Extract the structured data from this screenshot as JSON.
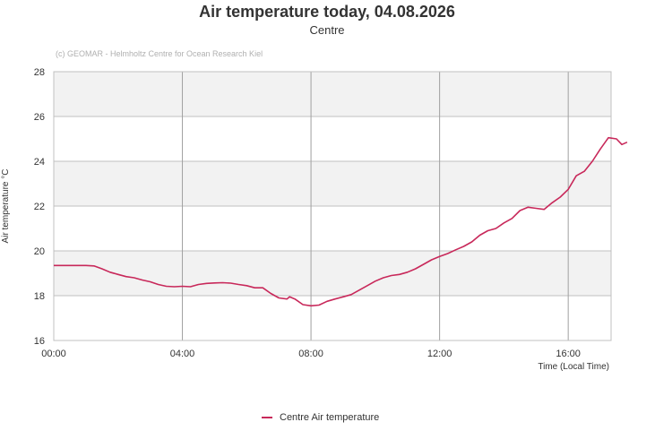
{
  "chart_data": {
    "type": "line",
    "title": "Air temperature today, 04.08.2026",
    "subtitle": "Centre",
    "credit": "(c) GEOMAR - Helmholtz Centre for Ocean Research Kiel",
    "xlabel": "Time (Local Time)",
    "ylabel": "Air temperature °C",
    "xlim": [
      "00:00",
      "17:20"
    ],
    "ylim": [
      16,
      28
    ],
    "x_ticks": [
      "00:00",
      "04:00",
      "08:00",
      "12:00",
      "16:00"
    ],
    "y_ticks": [
      16,
      18,
      20,
      22,
      24,
      26,
      28
    ],
    "grid": true,
    "legend_position": "bottom-center",
    "series": [
      {
        "name": "Centre Air temperature",
        "color": "#c8285a",
        "points": [
          [
            "00:00",
            19.35
          ],
          [
            "00:30",
            19.35
          ],
          [
            "01:00",
            19.35
          ],
          [
            "01:15",
            19.33
          ],
          [
            "01:30",
            19.2
          ],
          [
            "01:45",
            19.05
          ],
          [
            "02:00",
            18.95
          ],
          [
            "02:15",
            18.85
          ],
          [
            "02:30",
            18.8
          ],
          [
            "02:45",
            18.7
          ],
          [
            "03:00",
            18.62
          ],
          [
            "03:15",
            18.5
          ],
          [
            "03:30",
            18.42
          ],
          [
            "03:45",
            18.4
          ],
          [
            "04:00",
            18.42
          ],
          [
            "04:15",
            18.4
          ],
          [
            "04:30",
            18.5
          ],
          [
            "04:45",
            18.55
          ],
          [
            "05:00",
            18.57
          ],
          [
            "05:15",
            18.58
          ],
          [
            "05:30",
            18.56
          ],
          [
            "05:45",
            18.5
          ],
          [
            "06:00",
            18.45
          ],
          [
            "06:15",
            18.35
          ],
          [
            "06:30",
            18.35
          ],
          [
            "06:45",
            18.1
          ],
          [
            "07:00",
            17.9
          ],
          [
            "07:15",
            17.85
          ],
          [
            "07:20",
            17.95
          ],
          [
            "07:30",
            17.85
          ],
          [
            "07:45",
            17.6
          ],
          [
            "08:00",
            17.55
          ],
          [
            "08:15",
            17.58
          ],
          [
            "08:30",
            17.75
          ],
          [
            "08:45",
            17.85
          ],
          [
            "09:00",
            17.95
          ],
          [
            "09:15",
            18.05
          ],
          [
            "09:30",
            18.25
          ],
          [
            "09:45",
            18.45
          ],
          [
            "10:00",
            18.65
          ],
          [
            "10:15",
            18.8
          ],
          [
            "10:30",
            18.9
          ],
          [
            "10:45",
            18.95
          ],
          [
            "11:00",
            19.05
          ],
          [
            "11:15",
            19.2
          ],
          [
            "11:30",
            19.4
          ],
          [
            "11:45",
            19.6
          ],
          [
            "12:00",
            19.75
          ],
          [
            "12:15",
            19.88
          ],
          [
            "12:30",
            20.05
          ],
          [
            "12:45",
            20.2
          ],
          [
            "13:00",
            20.4
          ],
          [
            "13:15",
            20.7
          ],
          [
            "13:30",
            20.9
          ],
          [
            "13:45",
            21.0
          ],
          [
            "14:00",
            21.25
          ],
          [
            "14:15",
            21.45
          ],
          [
            "14:30",
            21.8
          ],
          [
            "14:45",
            21.95
          ],
          [
            "15:00",
            21.9
          ],
          [
            "15:15",
            21.85
          ],
          [
            "15:30",
            22.15
          ],
          [
            "15:45",
            22.4
          ],
          [
            "16:00",
            22.75
          ],
          [
            "16:15",
            23.35
          ],
          [
            "16:30",
            23.55
          ],
          [
            "16:45",
            24.0
          ],
          [
            "17:00",
            24.55
          ],
          [
            "17:15",
            25.05
          ],
          [
            "17:30",
            25.0
          ],
          [
            "17:40",
            24.75
          ],
          [
            "17:50",
            24.85
          ]
        ]
      }
    ]
  }
}
